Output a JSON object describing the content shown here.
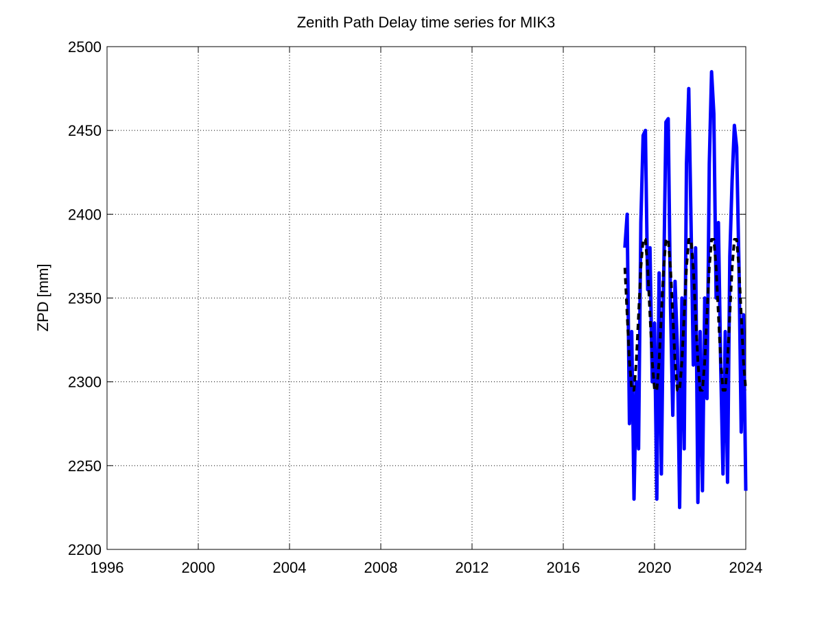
{
  "chart_data": {
    "type": "line",
    "title": "Zenith Path Delay time series for MIK3",
    "y_label": "ZPD [mm]",
    "x": [
      2018.7,
      2018.8,
      2018.9,
      2019.0,
      2019.1,
      2019.2,
      2019.3,
      2019.4,
      2019.5,
      2019.6,
      2019.7,
      2019.8,
      2019.9,
      2020.0,
      2020.1,
      2020.2,
      2020.3,
      2020.4,
      2020.5,
      2020.6,
      2020.7,
      2020.8,
      2020.9,
      2021.0,
      2021.1,
      2021.2,
      2021.3,
      2021.4,
      2021.5,
      2021.6,
      2021.7,
      2021.8,
      2021.9,
      2022.0,
      2022.1,
      2022.2,
      2022.3,
      2022.4,
      2022.5,
      2022.6,
      2022.7,
      2022.8,
      2022.9,
      2023.0,
      2023.1,
      2023.2,
      2023.3,
      2023.4,
      2023.5,
      2023.6,
      2023.7,
      2023.8,
      2023.9,
      2024.0
    ],
    "series": [
      {
        "color": "#0000ff",
        "dash": false,
        "values": [
          2380,
          2400,
          2275,
          2330,
          2230,
          2300,
          2260,
          2395,
          2447,
          2450,
          2355,
          2380,
          2300,
          2335,
          2230,
          2365,
          2245,
          2360,
          2455,
          2457,
          2345,
          2280,
          2360,
          2320,
          2225,
          2350,
          2260,
          2430,
          2475,
          2395,
          2310,
          2380,
          2228,
          2330,
          2235,
          2350,
          2290,
          2430,
          2485,
          2460,
          2350,
          2395,
          2310,
          2245,
          2330,
          2240,
          2375,
          2420,
          2453,
          2440,
          2370,
          2270,
          2340,
          2235
        ]
      },
      {
        "color": "#000000",
        "dash": true,
        "values": [
          2368,
          2340,
          2312,
          2295,
          2295,
          2312,
          2340,
          2368,
          2385,
          2385,
          2368,
          2340,
          2312,
          2295,
          2295,
          2312,
          2340,
          2368,
          2385,
          2385,
          2368,
          2340,
          2312,
          2295,
          2295,
          2312,
          2340,
          2368,
          2385,
          2385,
          2368,
          2340,
          2312,
          2295,
          2295,
          2312,
          2340,
          2368,
          2385,
          2385,
          2368,
          2340,
          2312,
          2295,
          2295,
          2312,
          2340,
          2368,
          2385,
          2385,
          2368,
          2340,
          2312,
          2295
        ]
      }
    ],
    "xlim": [
      1996,
      2024
    ],
    "xticks": [
      1996,
      2000,
      2004,
      2008,
      2012,
      2016,
      2020,
      2024
    ],
    "ylim": [
      2200,
      2500
    ],
    "yticks": [
      2200,
      2250,
      2300,
      2350,
      2400,
      2450,
      2500
    ],
    "grid": true
  }
}
